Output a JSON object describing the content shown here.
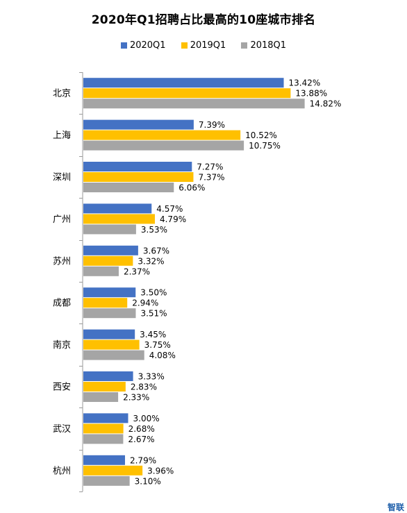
{
  "chart_data": {
    "type": "bar",
    "orientation": "horizontal",
    "title": "2020年Q1招聘占比最高的10座城市排名",
    "categories": [
      "北京",
      "上海",
      "深圳",
      "广州",
      "苏州",
      "成都",
      "南京",
      "西安",
      "武汉",
      "杭州"
    ],
    "series": [
      {
        "name": "2020Q1",
        "color": "#4472c4",
        "values": [
          13.42,
          7.39,
          7.27,
          4.57,
          3.67,
          3.5,
          3.45,
          3.33,
          3.0,
          2.79
        ],
        "labels": [
          "13.42%",
          "7.39%",
          "7.27%",
          "4.57%",
          "3.67%",
          "3.50%",
          "3.45%",
          "3.33%",
          "3.00%",
          "2.79%"
        ]
      },
      {
        "name": "2019Q1",
        "color": "#ffc000",
        "values": [
          13.88,
          10.52,
          7.37,
          4.79,
          3.32,
          2.94,
          3.75,
          2.83,
          2.68,
          3.96
        ],
        "labels": [
          "13.88%",
          "10.52%",
          "7.37%",
          "4.79%",
          "3.32%",
          "2.94%",
          "3.75%",
          "2.83%",
          "2.68%",
          "3.96%"
        ]
      },
      {
        "name": "2018Q1",
        "color": "#a5a5a5",
        "values": [
          14.82,
          10.75,
          6.06,
          3.53,
          2.37,
          3.51,
          4.08,
          2.33,
          2.67,
          3.1
        ],
        "labels": [
          "14.82%",
          "10.75%",
          "6.06%",
          "3.53%",
          "2.37%",
          "3.51%",
          "4.08%",
          "2.33%",
          "2.67%",
          "3.10%"
        ]
      }
    ],
    "xlim": [
      0,
      16
    ],
    "grid": false,
    "legend_position": "top"
  },
  "watermark": "智联"
}
